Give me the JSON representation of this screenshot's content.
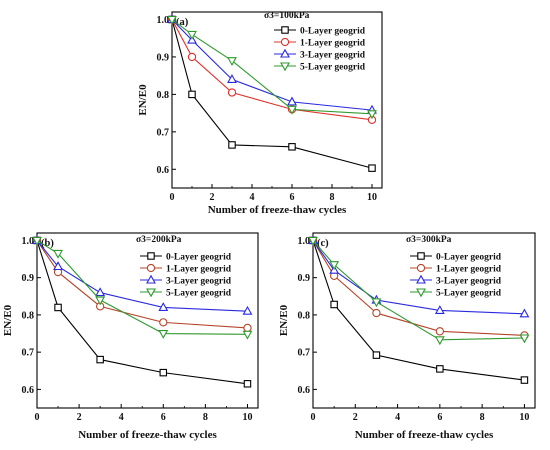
{
  "chart_data": [
    {
      "type": "line",
      "panel": "(a)",
      "condition": "σ3=100kPa",
      "xlabel": "Number of freeze-thaw cycles",
      "ylabel": "EN/E0",
      "xlim": [
        0,
        10.5
      ],
      "ylim": [
        0.55,
        1.02
      ],
      "xticks": [
        0,
        2,
        4,
        6,
        8,
        10
      ],
      "yticks": [
        0.6,
        0.7,
        0.8,
        0.9,
        1.0
      ],
      "x": [
        0,
        1,
        3,
        6,
        10
      ],
      "series": [
        {
          "name": "0-Layer geogrid",
          "color": "#000000",
          "marker": "square",
          "values": [
            1.0,
            0.8,
            0.665,
            0.66,
            0.603
          ]
        },
        {
          "name": "1-Layer geogrid",
          "color": "#e0302a",
          "marker": "circle",
          "values": [
            1.0,
            0.9,
            0.805,
            0.76,
            0.732
          ]
        },
        {
          "name": "3-Layer geogrid",
          "color": "#2a2ae0",
          "marker": "triangle-up",
          "values": [
            1.0,
            0.945,
            0.84,
            0.78,
            0.758
          ]
        },
        {
          "name": "5-Layer geogrid",
          "color": "#2e9a2e",
          "marker": "triangle-down",
          "values": [
            1.0,
            0.96,
            0.89,
            0.76,
            0.748
          ]
        }
      ]
    },
    {
      "type": "line",
      "panel": "(b)",
      "condition": "σ3=200kPa",
      "xlabel": "Number of freeze-thaw cycles",
      "ylabel": "EN/E0",
      "xlim": [
        0,
        10.5
      ],
      "ylim": [
        0.55,
        1.02
      ],
      "xticks": [
        0,
        2,
        4,
        6,
        8,
        10
      ],
      "yticks": [
        0.6,
        0.7,
        0.8,
        0.9,
        1.0
      ],
      "x": [
        0,
        1,
        3,
        6,
        10
      ],
      "series": [
        {
          "name": "0-Layer geogrid",
          "color": "#000000",
          "marker": "square",
          "values": [
            1.0,
            0.82,
            0.68,
            0.645,
            0.615
          ]
        },
        {
          "name": "1-Layer geogrid",
          "color": "#b5452a",
          "marker": "circle",
          "values": [
            1.0,
            0.915,
            0.823,
            0.78,
            0.765
          ]
        },
        {
          "name": "3-Layer geogrid",
          "color": "#2a2ae0",
          "marker": "triangle-up",
          "values": [
            1.0,
            0.93,
            0.86,
            0.82,
            0.81
          ]
        },
        {
          "name": "5-Layer geogrid",
          "color": "#2e9a2e",
          "marker": "triangle-down",
          "values": [
            1.0,
            0.965,
            0.84,
            0.75,
            0.748
          ]
        }
      ]
    },
    {
      "type": "line",
      "panel": "(c)",
      "condition": "σ3=300kPa",
      "xlabel": "Number of freeze-thaw cycles",
      "ylabel": "EN/E0",
      "xlim": [
        0,
        10.5
      ],
      "ylim": [
        0.55,
        1.02
      ],
      "xticks": [
        0,
        2,
        4,
        6,
        8,
        10
      ],
      "yticks": [
        0.6,
        0.7,
        0.8,
        0.9,
        1.0
      ],
      "x": [
        0,
        1,
        3,
        6,
        10
      ],
      "series": [
        {
          "name": "0-Layer geogrid",
          "color": "#000000",
          "marker": "square",
          "values": [
            1.0,
            0.828,
            0.692,
            0.655,
            0.625
          ]
        },
        {
          "name": "1-Layer geogrid",
          "color": "#b5452a",
          "marker": "circle",
          "values": [
            1.0,
            0.905,
            0.805,
            0.756,
            0.745
          ]
        },
        {
          "name": "3-Layer geogrid",
          "color": "#2a2ae0",
          "marker": "triangle-up",
          "values": [
            1.0,
            0.92,
            0.84,
            0.812,
            0.803
          ]
        },
        {
          "name": "5-Layer geogrid",
          "color": "#2e9a2e",
          "marker": "triangle-down",
          "values": [
            1.0,
            0.935,
            0.835,
            0.733,
            0.738
          ]
        }
      ]
    }
  ]
}
